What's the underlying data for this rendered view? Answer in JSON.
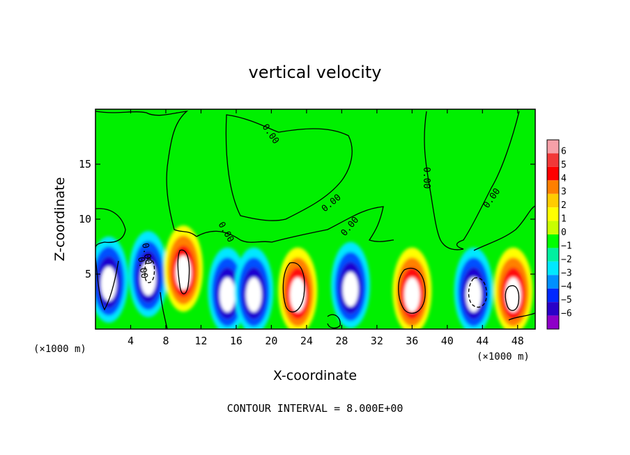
{
  "chart_data": {
    "type": "heatmap",
    "title": "vertical velocity",
    "xlabel": "X-coordinate",
    "ylabel": "Z-coordinate",
    "x_unit_label_left": "(×1000 m)",
    "x_unit_label_right": "(×1000 m)",
    "xlim": [
      0,
      50
    ],
    "ylim": [
      0,
      20
    ],
    "x_ticks": [
      4,
      8,
      12,
      16,
      20,
      24,
      28,
      32,
      36,
      40,
      44,
      48
    ],
    "y_ticks": [
      5,
      10,
      15
    ],
    "contour_interval_label": "CONTOUR INTERVAL = 8.000E+00",
    "contour_labels": [
      "0.00",
      "0.00",
      "0.00",
      "0.00",
      "0.00",
      "0.00",
      "0.00",
      "0.00"
    ],
    "colorbar": {
      "min": -6,
      "max": 6,
      "tick_labels": [
        "6",
        "5",
        "4",
        "3",
        "2",
        "1",
        "0",
        "−1",
        "−2",
        "−3",
        "−4",
        "−5",
        "−6"
      ],
      "colors": [
        "#f7a0a8",
        "#f23838",
        "#ff0000",
        "#ff7f00",
        "#ffcc00",
        "#ffff00",
        "#c8ff00",
        "#00ff00",
        "#00f0a0",
        "#00e8ff",
        "#0090ff",
        "#0028ff",
        "#2a00c8",
        "#8e00c8"
      ]
    },
    "cells": [
      {
        "x": 1.5,
        "z": 4.5,
        "value": -5
      },
      {
        "x": 6,
        "z": 5,
        "value": -5
      },
      {
        "x": 10,
        "z": 5.5,
        "value": 6
      },
      {
        "x": 15,
        "z": 3.5,
        "value": -5
      },
      {
        "x": 18,
        "z": 3.5,
        "value": -5
      },
      {
        "x": 23,
        "z": 3.5,
        "value": 6
      },
      {
        "x": 29,
        "z": 4,
        "value": -5
      },
      {
        "x": 36,
        "z": 3.5,
        "value": 6
      },
      {
        "x": 43,
        "z": 3.5,
        "value": -5
      },
      {
        "x": 47.5,
        "z": 3.5,
        "value": 6
      }
    ]
  }
}
